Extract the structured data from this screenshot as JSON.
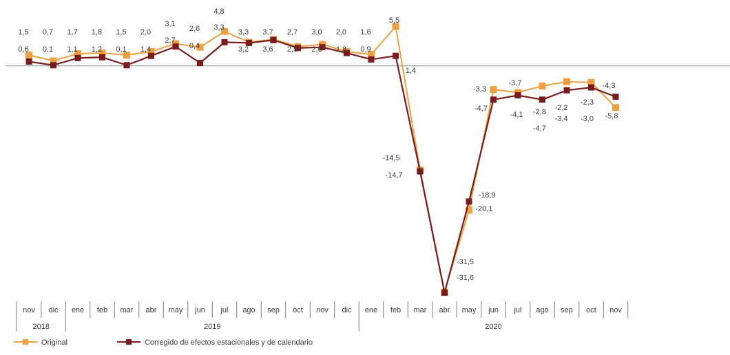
{
  "chart_data": {
    "type": "line",
    "title": "",
    "xlabel": "",
    "ylabel": "",
    "categories": [
      "nov",
      "dic",
      "ene",
      "feb",
      "mar",
      "abr",
      "may",
      "jun",
      "jul",
      "ago",
      "sep",
      "oct",
      "nov",
      "dic",
      "ene",
      "feb",
      "mar",
      "abr",
      "may",
      "jun",
      "jul",
      "ago",
      "sep",
      "oct",
      "nov"
    ],
    "years": [
      {
        "label": "2018",
        "from": 0,
        "to": 1
      },
      {
        "label": "2019",
        "from": 2,
        "to": 13
      },
      {
        "label": "2020",
        "from": 14,
        "to": 24
      }
    ],
    "ylim": [
      -33,
      6.5
    ],
    "grid": false,
    "legend_position": "bottom-left",
    "series": [
      {
        "name": "Original",
        "color": "#f0a040",
        "values": [
          1.5,
          0.7,
          1.7,
          1.8,
          1.5,
          2.0,
          3.1,
          2.6,
          4.8,
          3.3,
          3.7,
          2.7,
          3.0,
          2.0,
          1.6,
          5.5,
          -14.5,
          -31.5,
          -20.1,
          -3.3,
          -3.7,
          -2.8,
          -2.2,
          -2.3,
          -5.8
        ],
        "labels": [
          "1,5",
          "0,7",
          "1,7",
          "1,8",
          "1,5",
          "2,0",
          "3,1",
          "2,6",
          "4,8",
          "3,3",
          "3,7",
          "2,7",
          "3,0",
          "2,0",
          "1,6",
          "5,5",
          "-14,5",
          "-31,5",
          "-20,1",
          "-3,3",
          "-3,7",
          "-2,8",
          "-2,2",
          "-2,3",
          "-5,8"
        ]
      },
      {
        "name": "Corregido de efectos estacionales y de calendario",
        "color": "#7a1c1c",
        "values": [
          0.6,
          0.1,
          1.1,
          1.2,
          0.1,
          1.4,
          2.7,
          0.4,
          3.3,
          3.2,
          3.6,
          2.5,
          2.6,
          1.8,
          0.9,
          1.4,
          -14.7,
          -31.6,
          -18.9,
          -4.7,
          -4.1,
          -4.7,
          -3.4,
          -3.0,
          -4.3
        ],
        "labels": [
          "0,6",
          "0,1",
          "1,1",
          "1,2",
          "0,1",
          "1,4",
          "2,7",
          "0,4",
          "3,3",
          "3,2",
          "3,6",
          "2,5",
          "2,6",
          "1,8",
          "0,9",
          "1,4",
          "-14,7",
          "-31,6",
          "-18,9",
          "-4,7",
          "-4,1",
          "-4,7",
          "-3,4",
          "-3,0",
          "-4,3"
        ]
      }
    ]
  }
}
